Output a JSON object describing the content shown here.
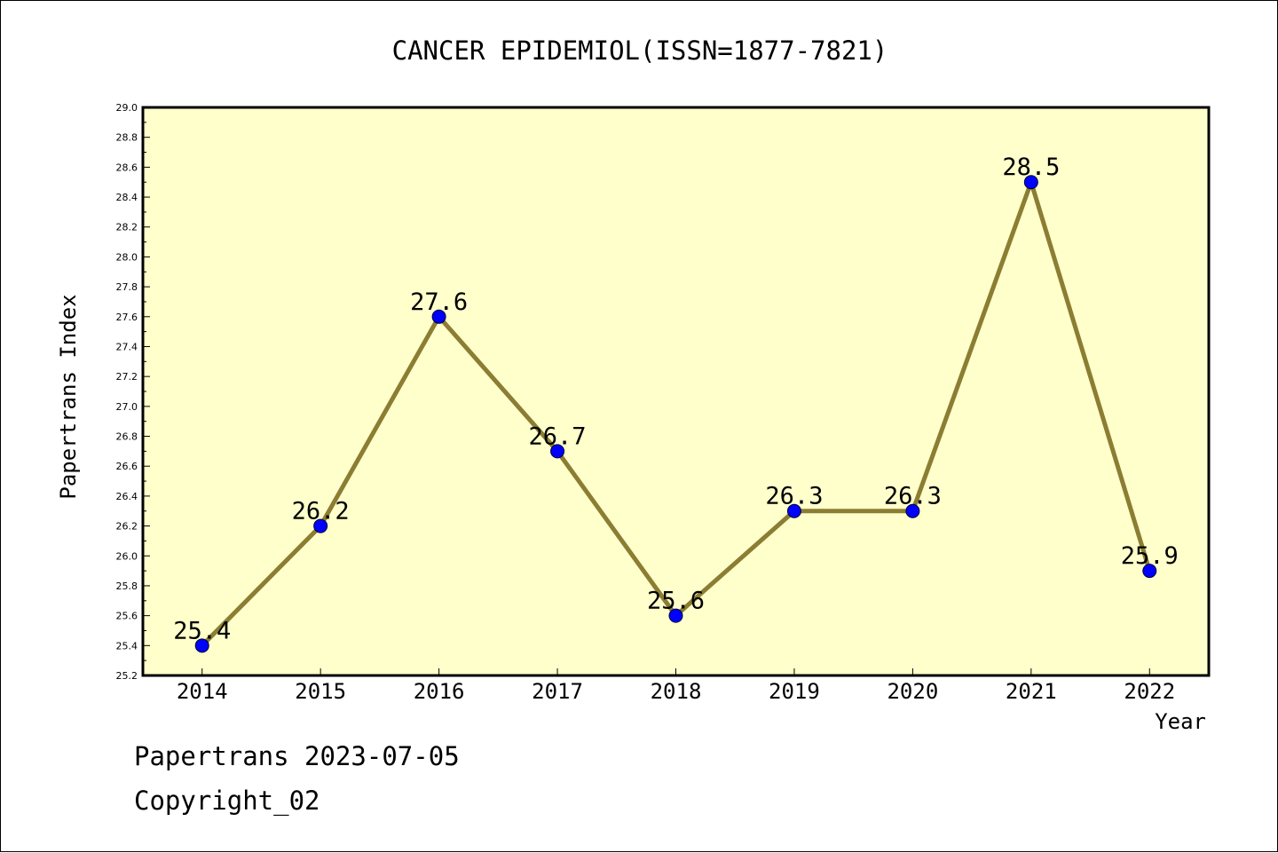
{
  "chart_data": {
    "type": "line",
    "title": "CANCER EPIDEMIOL(ISSN=1877-7821)",
    "xlabel": "Year",
    "ylabel": "Papertrans Index",
    "categories": [
      "2014",
      "2015",
      "2016",
      "2017",
      "2018",
      "2019",
      "2020",
      "2021",
      "2022"
    ],
    "series": [
      {
        "values": [
          25.4,
          26.2,
          27.6,
          26.7,
          25.6,
          26.3,
          26.3,
          28.5,
          25.9
        ]
      }
    ],
    "data_labels": [
      "25.4",
      "26.2",
      "27.6",
      "26.7",
      "25.6",
      "26.3",
      "26.3",
      "28.5",
      "25.9"
    ],
    "ylim": [
      25.2,
      29.0
    ],
    "yticks": [
      "25.2",
      "25.4",
      "25.6",
      "25.8",
      "26.0",
      "26.2",
      "26.4",
      "26.6",
      "26.8",
      "27.0",
      "27.2",
      "27.4",
      "27.6",
      "27.8",
      "28.0",
      "28.2",
      "28.4",
      "28.6",
      "28.8",
      "29.0"
    ],
    "grid": false,
    "colors": {
      "plot_background": "#ffffcc",
      "line": "#8b7d32",
      "marker": "#0000ff"
    }
  },
  "footer": {
    "line1": "Papertrans 2023-07-05",
    "line2": "Copyright_02"
  }
}
